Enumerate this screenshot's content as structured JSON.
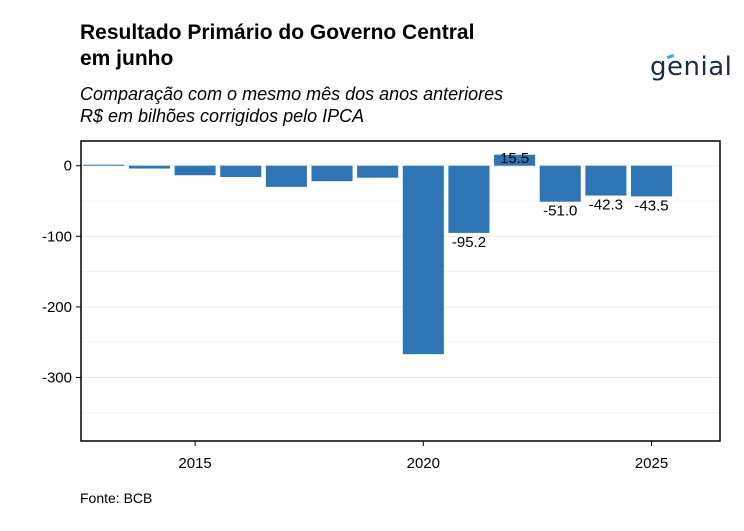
{
  "title": "Resultado Primário do Governo Central\nem junho",
  "title_line1": "Resultado Primário do Governo Central",
  "title_line2": "em junho",
  "subtitle_line1": "Comparação com o mesmo mês dos anos anteriores",
  "subtitle_line2": "R$ em bilhões corrigidos pelo IPCA",
  "logo_text": "genial",
  "source": "Fonte: BCB",
  "colors": {
    "bar": "#2e75b6",
    "grid": "#ebebeb",
    "logo_accent": "#29b6c7"
  },
  "chart_data": {
    "type": "bar",
    "title": "Resultado Primário do Governo Central em junho",
    "subtitle": "Comparação com o mesmo mês dos anos anteriores — R$ em bilhões corrigidos pelo IPCA",
    "x": [
      2013,
      2014,
      2015,
      2016,
      2017,
      2018,
      2019,
      2020,
      2021,
      2022,
      2023,
      2024,
      2025
    ],
    "values": [
      1.5,
      -4.0,
      -13.5,
      -16.0,
      -30.0,
      -22.0,
      -17.0,
      -267.0,
      -95.2,
      15.5,
      -51.0,
      -42.3,
      -43.5
    ],
    "labels": [
      "",
      "",
      "",
      "",
      "",
      "",
      "",
      "",
      "-95.2",
      "15.5",
      "-51.0",
      "-42.3",
      "-43.5"
    ],
    "x_ticks": [
      2015,
      2020,
      2025
    ],
    "y_ticks": [
      0,
      -100,
      -200,
      -300
    ],
    "ylim": [
      -390,
      35
    ],
    "xlim": [
      2012.5,
      2026.5
    ],
    "grid": true,
    "legend": "none",
    "xlabel": "",
    "ylabel": ""
  }
}
